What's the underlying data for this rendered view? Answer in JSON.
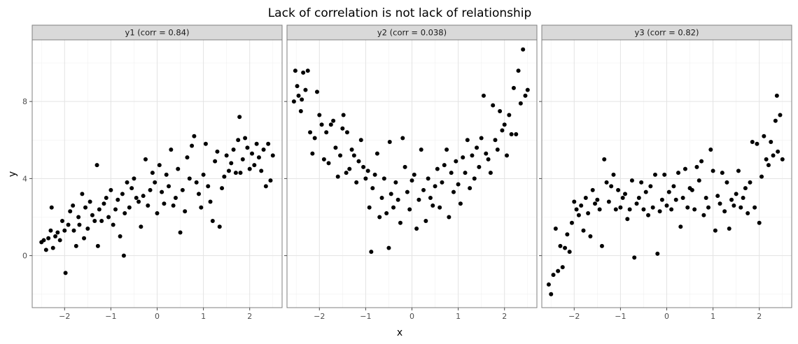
{
  "chart_data": {
    "type": "scatter",
    "title": "Lack of correlation is not lack of relationship",
    "xlabel": "x",
    "ylabel": "y",
    "xlim": [
      -2.7,
      2.7
    ],
    "ylim": [
      -2.7,
      11.2
    ],
    "x_ticks": [
      -2,
      -1,
      0,
      1,
      2
    ],
    "y_ticks": [
      0,
      4,
      8
    ],
    "x_tick_labels": [
      "−2",
      "−1",
      "0",
      "1",
      "2"
    ],
    "y_tick_labels": [
      "0",
      "4",
      "8"
    ],
    "grid": true,
    "legend": "none",
    "point_color": "#000000",
    "panel_border_color": "#7f7f7f",
    "strip_fill": "#d9d9d9",
    "panels": [
      {
        "strip": "y1 (corr = 0.84)",
        "points": [
          [
            -2.5,
            0.7
          ],
          [
            -2.45,
            0.8
          ],
          [
            -2.4,
            0.3
          ],
          [
            -2.35,
            0.9
          ],
          [
            -2.3,
            1.3
          ],
          [
            -2.28,
            2.5
          ],
          [
            -2.25,
            0.4
          ],
          [
            -2.2,
            1.0
          ],
          [
            -2.15,
            1.2
          ],
          [
            -2.1,
            0.8
          ],
          [
            -2.05,
            1.8
          ],
          [
            -2.0,
            1.3
          ],
          [
            -1.98,
            -0.9
          ],
          [
            -1.92,
            1.6
          ],
          [
            -1.88,
            2.3
          ],
          [
            -1.82,
            2.6
          ],
          [
            -1.8,
            1.3
          ],
          [
            -1.75,
            0.5
          ],
          [
            -1.7,
            2.0
          ],
          [
            -1.68,
            1.6
          ],
          [
            -1.62,
            3.2
          ],
          [
            -1.58,
            0.9
          ],
          [
            -1.55,
            2.5
          ],
          [
            -1.5,
            1.4
          ],
          [
            -1.45,
            2.8
          ],
          [
            -1.4,
            2.1
          ],
          [
            -1.35,
            1.8
          ],
          [
            -1.3,
            4.7
          ],
          [
            -1.28,
            0.5
          ],
          [
            -1.25,
            2.4
          ],
          [
            -1.2,
            1.8
          ],
          [
            -1.15,
            2.7
          ],
          [
            -1.1,
            3.0
          ],
          [
            -1.05,
            2.0
          ],
          [
            -1.0,
            3.4
          ],
          [
            -0.95,
            1.6
          ],
          [
            -0.9,
            2.4
          ],
          [
            -0.85,
            2.9
          ],
          [
            -0.8,
            1.0
          ],
          [
            -0.75,
            3.2
          ],
          [
            -0.72,
            0.0
          ],
          [
            -0.7,
            2.2
          ],
          [
            -0.65,
            3.8
          ],
          [
            -0.6,
            2.5
          ],
          [
            -0.55,
            3.5
          ],
          [
            -0.5,
            4.0
          ],
          [
            -0.45,
            3.0
          ],
          [
            -0.4,
            2.8
          ],
          [
            -0.35,
            1.5
          ],
          [
            -0.3,
            3.1
          ],
          [
            -0.25,
            5.0
          ],
          [
            -0.2,
            2.6
          ],
          [
            -0.15,
            3.4
          ],
          [
            -0.1,
            4.3
          ],
          [
            -0.05,
            3.8
          ],
          [
            0.0,
            2.2
          ],
          [
            0.05,
            4.7
          ],
          [
            0.1,
            3.3
          ],
          [
            0.15,
            2.7
          ],
          [
            0.2,
            4.2
          ],
          [
            0.25,
            3.6
          ],
          [
            0.3,
            5.5
          ],
          [
            0.35,
            2.6
          ],
          [
            0.4,
            3.0
          ],
          [
            0.45,
            4.5
          ],
          [
            0.5,
            1.2
          ],
          [
            0.55,
            3.4
          ],
          [
            0.6,
            2.3
          ],
          [
            0.65,
            5.1
          ],
          [
            0.7,
            4.0
          ],
          [
            0.75,
            5.7
          ],
          [
            0.8,
            6.2
          ],
          [
            0.85,
            3.8
          ],
          [
            0.9,
            3.2
          ],
          [
            0.95,
            2.5
          ],
          [
            1.0,
            4.2
          ],
          [
            1.05,
            5.8
          ],
          [
            1.1,
            3.6
          ],
          [
            1.15,
            2.8
          ],
          [
            1.2,
            1.8
          ],
          [
            1.25,
            4.9
          ],
          [
            1.3,
            5.4
          ],
          [
            1.35,
            1.5
          ],
          [
            1.4,
            3.5
          ],
          [
            1.45,
            4.1
          ],
          [
            1.5,
            5.2
          ],
          [
            1.55,
            4.4
          ],
          [
            1.6,
            4.8
          ],
          [
            1.65,
            5.5
          ],
          [
            1.7,
            4.3
          ],
          [
            1.75,
            6.0
          ],
          [
            1.78,
            7.2
          ],
          [
            1.8,
            4.3
          ],
          [
            1.85,
            5.0
          ],
          [
            1.9,
            6.1
          ],
          [
            1.95,
            5.6
          ],
          [
            2.0,
            4.5
          ],
          [
            2.05,
            5.3
          ],
          [
            2.1,
            4.7
          ],
          [
            2.15,
            5.8
          ],
          [
            2.2,
            5.1
          ],
          [
            2.25,
            4.4
          ],
          [
            2.3,
            5.5
          ],
          [
            2.35,
            3.6
          ],
          [
            2.4,
            5.8
          ],
          [
            2.45,
            3.9
          ],
          [
            2.5,
            5.2
          ]
        ]
      },
      {
        "strip": "y2 (corr = 0.038)",
        "points": [
          [
            -2.55,
            8.0
          ],
          [
            -2.52,
            9.6
          ],
          [
            -2.48,
            8.8
          ],
          [
            -2.45,
            8.3
          ],
          [
            -2.4,
            7.5
          ],
          [
            -2.38,
            8.1
          ],
          [
            -2.35,
            9.5
          ],
          [
            -2.3,
            8.6
          ],
          [
            -2.25,
            9.6
          ],
          [
            -2.2,
            6.4
          ],
          [
            -2.15,
            5.3
          ],
          [
            -2.1,
            6.1
          ],
          [
            -2.05,
            8.5
          ],
          [
            -2.0,
            7.3
          ],
          [
            -1.95,
            6.8
          ],
          [
            -1.9,
            5.0
          ],
          [
            -1.85,
            6.4
          ],
          [
            -1.8,
            4.8
          ],
          [
            -1.75,
            6.8
          ],
          [
            -1.7,
            7.0
          ],
          [
            -1.65,
            5.6
          ],
          [
            -1.6,
            4.1
          ],
          [
            -1.55,
            5.2
          ],
          [
            -1.5,
            6.6
          ],
          [
            -1.48,
            7.3
          ],
          [
            -1.42,
            4.3
          ],
          [
            -1.4,
            6.4
          ],
          [
            -1.35,
            4.5
          ],
          [
            -1.3,
            5.5
          ],
          [
            -1.25,
            5.2
          ],
          [
            -1.2,
            3.8
          ],
          [
            -1.15,
            4.9
          ],
          [
            -1.1,
            6.0
          ],
          [
            -1.05,
            4.6
          ],
          [
            -1.0,
            4.0
          ],
          [
            -0.95,
            4.4
          ],
          [
            -0.92,
            2.5
          ],
          [
            -0.88,
            0.2
          ],
          [
            -0.85,
            3.5
          ],
          [
            -0.8,
            4.2
          ],
          [
            -0.75,
            5.3
          ],
          [
            -0.7,
            2.0
          ],
          [
            -0.65,
            3.0
          ],
          [
            -0.6,
            4.0
          ],
          [
            -0.55,
            2.2
          ],
          [
            -0.5,
            0.4
          ],
          [
            -0.48,
            5.9
          ],
          [
            -0.45,
            3.2
          ],
          [
            -0.4,
            2.5
          ],
          [
            -0.35,
            3.8
          ],
          [
            -0.3,
            2.9
          ],
          [
            -0.25,
            1.7
          ],
          [
            -0.2,
            6.1
          ],
          [
            -0.15,
            4.6
          ],
          [
            -0.1,
            3.3
          ],
          [
            -0.05,
            2.4
          ],
          [
            0.0,
            3.9
          ],
          [
            0.05,
            4.2
          ],
          [
            0.1,
            1.4
          ],
          [
            0.15,
            2.9
          ],
          [
            0.2,
            5.5
          ],
          [
            0.25,
            3.4
          ],
          [
            0.3,
            1.8
          ],
          [
            0.35,
            4.0
          ],
          [
            0.4,
            3.0
          ],
          [
            0.45,
            2.6
          ],
          [
            0.5,
            3.6
          ],
          [
            0.55,
            4.5
          ],
          [
            0.6,
            2.5
          ],
          [
            0.65,
            3.8
          ],
          [
            0.7,
            4.7
          ],
          [
            0.75,
            5.5
          ],
          [
            0.8,
            2.0
          ],
          [
            0.85,
            4.3
          ],
          [
            0.9,
            3.3
          ],
          [
            0.95,
            4.9
          ],
          [
            1.0,
            3.7
          ],
          [
            1.05,
            2.7
          ],
          [
            1.1,
            5.1
          ],
          [
            1.15,
            4.3
          ],
          [
            1.2,
            6.0
          ],
          [
            1.25,
            3.5
          ],
          [
            1.3,
            5.2
          ],
          [
            1.35,
            4.0
          ],
          [
            1.4,
            5.6
          ],
          [
            1.45,
            4.6
          ],
          [
            1.5,
            6.1
          ],
          [
            1.55,
            8.3
          ],
          [
            1.6,
            5.3
          ],
          [
            1.65,
            5.0
          ],
          [
            1.7,
            4.3
          ],
          [
            1.75,
            7.8
          ],
          [
            1.8,
            6.0
          ],
          [
            1.85,
            5.5
          ],
          [
            1.9,
            7.5
          ],
          [
            1.95,
            6.5
          ],
          [
            2.0,
            6.8
          ],
          [
            2.05,
            5.2
          ],
          [
            2.1,
            7.3
          ],
          [
            2.15,
            6.3
          ],
          [
            2.2,
            8.7
          ],
          [
            2.25,
            6.3
          ],
          [
            2.3,
            9.6
          ],
          [
            2.35,
            7.9
          ],
          [
            2.4,
            10.7
          ],
          [
            2.45,
            8.3
          ],
          [
            2.5,
            8.6
          ]
        ]
      },
      {
        "strip": "y3 (corr = 0.82)",
        "points": [
          [
            -2.55,
            -1.5
          ],
          [
            -2.5,
            -2.0
          ],
          [
            -2.45,
            -1.0
          ],
          [
            -2.4,
            1.4
          ],
          [
            -2.35,
            -0.8
          ],
          [
            -2.3,
            0.5
          ],
          [
            -2.25,
            -0.6
          ],
          [
            -2.2,
            0.4
          ],
          [
            -2.15,
            1.1
          ],
          [
            -2.1,
            0.2
          ],
          [
            -2.05,
            1.7
          ],
          [
            -2.0,
            2.8
          ],
          [
            -1.95,
            2.4
          ],
          [
            -1.9,
            2.1
          ],
          [
            -1.85,
            2.6
          ],
          [
            -1.8,
            1.3
          ],
          [
            -1.75,
            3.0
          ],
          [
            -1.7,
            2.2
          ],
          [
            -1.65,
            1.0
          ],
          [
            -1.6,
            3.4
          ],
          [
            -1.55,
            2.7
          ],
          [
            -1.5,
            2.9
          ],
          [
            -1.45,
            2.4
          ],
          [
            -1.4,
            0.5
          ],
          [
            -1.35,
            5.0
          ],
          [
            -1.3,
            3.8
          ],
          [
            -1.25,
            2.8
          ],
          [
            -1.2,
            3.6
          ],
          [
            -1.15,
            4.2
          ],
          [
            -1.1,
            2.4
          ],
          [
            -1.05,
            3.4
          ],
          [
            -1.0,
            2.5
          ],
          [
            -0.95,
            3.0
          ],
          [
            -0.9,
            3.2
          ],
          [
            -0.85,
            1.9
          ],
          [
            -0.8,
            2.4
          ],
          [
            -0.75,
            3.9
          ],
          [
            -0.7,
            -0.1
          ],
          [
            -0.65,
            2.7
          ],
          [
            -0.6,
            3.0
          ],
          [
            -0.55,
            3.8
          ],
          [
            -0.5,
            2.4
          ],
          [
            -0.45,
            3.3
          ],
          [
            -0.4,
            2.1
          ],
          [
            -0.35,
            3.6
          ],
          [
            -0.3,
            2.5
          ],
          [
            -0.25,
            4.2
          ],
          [
            -0.2,
            0.1
          ],
          [
            -0.15,
            2.3
          ],
          [
            -0.1,
            2.9
          ],
          [
            -0.05,
            4.2
          ],
          [
            0.0,
            2.6
          ],
          [
            0.05,
            3.3
          ],
          [
            0.1,
            2.4
          ],
          [
            0.15,
            3.6
          ],
          [
            0.2,
            2.9
          ],
          [
            0.25,
            4.3
          ],
          [
            0.3,
            1.5
          ],
          [
            0.35,
            3.0
          ],
          [
            0.4,
            4.5
          ],
          [
            0.45,
            2.5
          ],
          [
            0.5,
            3.5
          ],
          [
            0.55,
            3.4
          ],
          [
            0.6,
            2.4
          ],
          [
            0.65,
            4.6
          ],
          [
            0.7,
            3.9
          ],
          [
            0.75,
            4.9
          ],
          [
            0.8,
            2.1
          ],
          [
            0.85,
            3.0
          ],
          [
            0.9,
            2.5
          ],
          [
            0.95,
            5.5
          ],
          [
            1.0,
            4.4
          ],
          [
            1.05,
            1.3
          ],
          [
            1.1,
            3.1
          ],
          [
            1.15,
            2.7
          ],
          [
            1.2,
            4.3
          ],
          [
            1.25,
            2.3
          ],
          [
            1.3,
            3.8
          ],
          [
            1.35,
            1.4
          ],
          [
            1.4,
            2.9
          ],
          [
            1.45,
            2.6
          ],
          [
            1.5,
            3.2
          ],
          [
            1.55,
            4.4
          ],
          [
            1.6,
            2.5
          ],
          [
            1.65,
            3.0
          ],
          [
            1.7,
            3.5
          ],
          [
            1.75,
            2.2
          ],
          [
            1.8,
            3.8
          ],
          [
            1.85,
            5.9
          ],
          [
            1.9,
            2.5
          ],
          [
            1.95,
            5.8
          ],
          [
            2.0,
            1.7
          ],
          [
            2.05,
            4.1
          ],
          [
            2.1,
            6.2
          ],
          [
            2.15,
            5.0
          ],
          [
            2.2,
            4.7
          ],
          [
            2.25,
            5.9
          ],
          [
            2.3,
            5.2
          ],
          [
            2.35,
            7.0
          ],
          [
            2.38,
            8.3
          ],
          [
            2.4,
            5.4
          ],
          [
            2.45,
            7.3
          ],
          [
            2.5,
            5.0
          ]
        ]
      }
    ]
  }
}
